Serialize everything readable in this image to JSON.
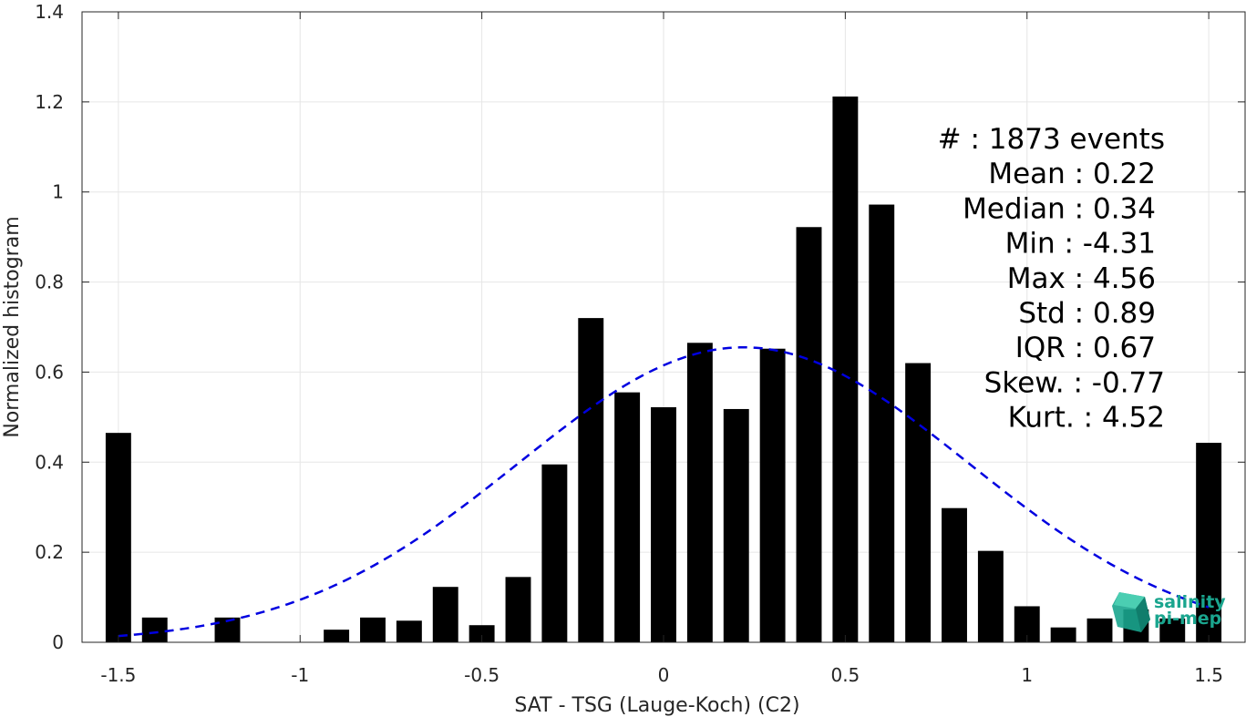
{
  "chart_data": {
    "type": "bar",
    "xlabel": "SAT - TSG (Lauge-Koch) (C2)",
    "ylabel": "Normalized histogram",
    "xlim": [
      -1.6,
      1.6
    ],
    "ylim": [
      0,
      1.4
    ],
    "grid": true,
    "xticks": [
      -1.5,
      -1,
      -0.5,
      0,
      0.5,
      1,
      1.5
    ],
    "xtick_labels": [
      "-1.5",
      "-1",
      "-0.5",
      "0",
      "0.5",
      "1",
      "1.5"
    ],
    "yticks": [
      0,
      0.2,
      0.4,
      0.6,
      0.8,
      1,
      1.2,
      1.4
    ],
    "ytick_labels": [
      "0",
      "0.2",
      "0.4",
      "0.6",
      "0.8",
      "1",
      "1.2",
      "1.4"
    ],
    "bar_color": "#000000",
    "bar_width": 0.07,
    "bars": {
      "x": [
        -1.5,
        -1.4,
        -1.3,
        -1.2,
        -1.1,
        -1.0,
        -0.9,
        -0.8,
        -0.7,
        -0.6,
        -0.5,
        -0.4,
        -0.3,
        -0.2,
        -0.1,
        0.0,
        0.1,
        0.2,
        0.3,
        0.4,
        0.5,
        0.6,
        0.7,
        0.8,
        0.9,
        1.0,
        1.1,
        1.2,
        1.3,
        1.4,
        1.5
      ],
      "values": [
        0.465,
        0.055,
        0.0,
        0.055,
        0.0,
        0.0,
        0.028,
        0.055,
        0.048,
        0.123,
        0.038,
        0.145,
        0.395,
        0.72,
        0.555,
        0.522,
        0.665,
        0.518,
        0.652,
        0.922,
        1.212,
        0.972,
        0.62,
        0.298,
        0.203,
        0.08,
        0.033,
        0.053,
        0.073,
        0.053,
        0.443
      ]
    },
    "fit_curve": {
      "type": "gaussian",
      "mean": 0.22,
      "std": 0.62,
      "amplitude": 0.655,
      "x_range": [
        -1.5,
        1.5
      ],
      "color": "#0000e0",
      "style": "dashed"
    },
    "stats": [
      {
        "label": "#  ",
        "value": "1873 events"
      },
      {
        "label": "Mean",
        "value": "0.22"
      },
      {
        "label": "Median",
        "value": "0.34"
      },
      {
        "label": "Min",
        "value": "-4.31"
      },
      {
        "label": "Max",
        "value": "4.56"
      },
      {
        "label": "Std",
        "value": "0.89"
      },
      {
        "label": "IQR",
        "value": "0.67"
      },
      {
        "label": "Skew.",
        "value": "-0.77"
      },
      {
        "label": "Kurt.",
        "value": "4.52"
      }
    ],
    "logo": {
      "line1": "salinity",
      "line2": "pi-mep",
      "color": "#1aa58e",
      "icon": "cube-logo-icon"
    }
  }
}
